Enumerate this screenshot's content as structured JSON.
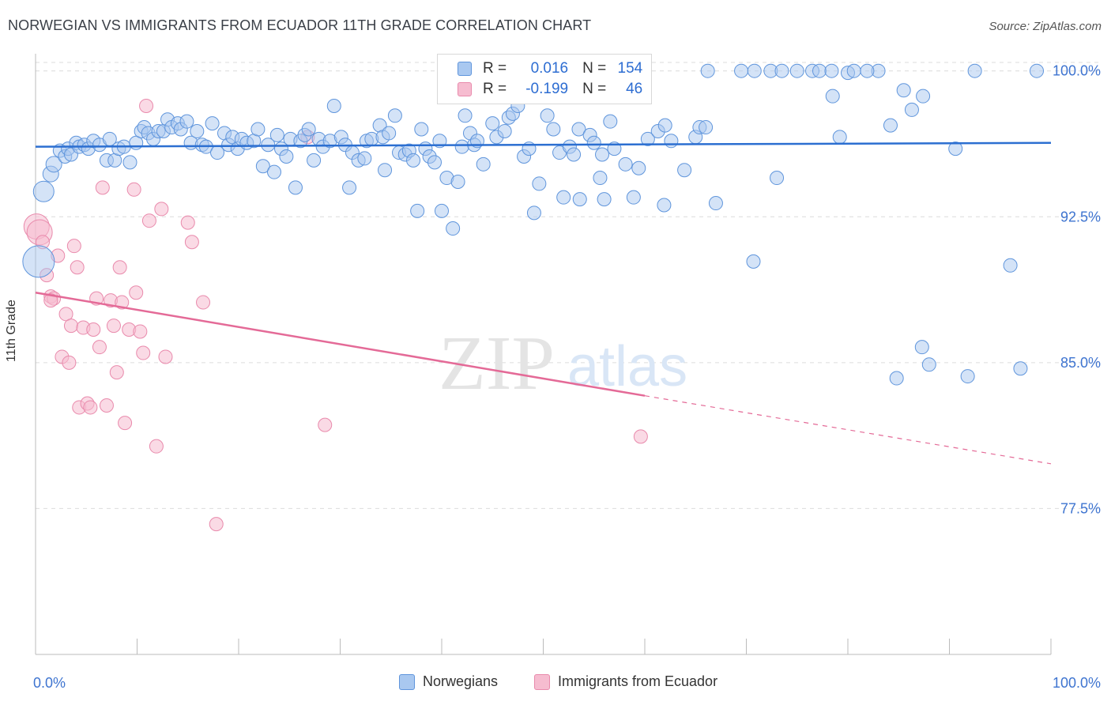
{
  "title": "NORWEGIAN VS IMMIGRANTS FROM ECUADOR 11TH GRADE CORRELATION CHART",
  "source": "Source: ZipAtlas.com",
  "watermark": {
    "zip": "ZIP",
    "atlas": "atlas"
  },
  "legend": {
    "r_label": "R =",
    "n_label": "N =",
    "series": [
      {
        "r": "0.016",
        "n": "154"
      },
      {
        "r": "-0.199",
        "n": "46"
      }
    ]
  },
  "colors": {
    "blue_fill": "#a9c8f0",
    "blue_stroke": "#5f95dc",
    "blue_line": "#2c6fd1",
    "pink_fill": "#f6bcd0",
    "pink_stroke": "#e98aac",
    "pink_line": "#e46a97",
    "tick_label": "#3e74d0",
    "grid": "#dcdcdc"
  },
  "chart_data": {
    "type": "scatter",
    "title": "NORWEGIAN VS IMMIGRANTS FROM ECUADOR 11TH GRADE CORRELATION CHART",
    "xlabel": "",
    "ylabel": "11th Grade",
    "xlim": [
      0,
      100
    ],
    "ylim": [
      70,
      100.8
    ],
    "x_tick_labels": [
      "0.0%",
      "100.0%"
    ],
    "y_ticks": [
      77.5,
      85.0,
      92.5,
      100.0
    ],
    "y_tick_labels": [
      "77.5%",
      "85.0%",
      "92.5%",
      "100.0%"
    ],
    "grid": "horizontal dashed",
    "legend_position": "top-center",
    "series": [
      {
        "name": "Norwegians",
        "color": "#a9c8f0",
        "trend": {
          "x": [
            0,
            100
          ],
          "y": [
            96.1,
            96.3
          ],
          "dashed_after": null
        },
        "points": [
          [
            0.3,
            90.2
          ],
          [
            0.8,
            93.8
          ],
          [
            1.5,
            94.7
          ],
          [
            1.8,
            95.2
          ],
          [
            2.4,
            95.9
          ],
          [
            2.9,
            95.6
          ],
          [
            3.2,
            96.0
          ],
          [
            3.5,
            95.7
          ],
          [
            4.0,
            96.3
          ],
          [
            4.3,
            96.1
          ],
          [
            4.8,
            96.2
          ],
          [
            5.2,
            96.0
          ],
          [
            5.7,
            96.4
          ],
          [
            6.3,
            96.2
          ],
          [
            7.0,
            95.4
          ],
          [
            7.3,
            96.5
          ],
          [
            7.8,
            95.4
          ],
          [
            8.2,
            96.0
          ],
          [
            8.7,
            96.1
          ],
          [
            9.3,
            95.3
          ],
          [
            9.9,
            96.3
          ],
          [
            10.4,
            96.9
          ],
          [
            10.7,
            97.1
          ],
          [
            11.1,
            96.8
          ],
          [
            11.6,
            96.5
          ],
          [
            12.1,
            96.9
          ],
          [
            12.6,
            96.9
          ],
          [
            13.0,
            97.5
          ],
          [
            13.4,
            97.1
          ],
          [
            14.0,
            97.3
          ],
          [
            14.3,
            97.0
          ],
          [
            14.9,
            97.4
          ],
          [
            15.3,
            96.3
          ],
          [
            15.9,
            96.9
          ],
          [
            16.4,
            96.2
          ],
          [
            16.8,
            96.1
          ],
          [
            17.4,
            97.3
          ],
          [
            17.9,
            95.8
          ],
          [
            18.6,
            96.8
          ],
          [
            19.0,
            96.2
          ],
          [
            19.4,
            96.6
          ],
          [
            19.9,
            96.0
          ],
          [
            20.3,
            96.5
          ],
          [
            20.8,
            96.3
          ],
          [
            21.5,
            96.4
          ],
          [
            21.9,
            97.0
          ],
          [
            22.4,
            95.1
          ],
          [
            22.9,
            96.2
          ],
          [
            23.5,
            94.8
          ],
          [
            23.8,
            96.7
          ],
          [
            24.2,
            96.0
          ],
          [
            24.7,
            95.6
          ],
          [
            25.1,
            96.5
          ],
          [
            25.6,
            94.0
          ],
          [
            26.1,
            96.4
          ],
          [
            26.5,
            96.7
          ],
          [
            26.9,
            97.0
          ],
          [
            27.4,
            95.4
          ],
          [
            27.9,
            96.5
          ],
          [
            28.3,
            96.1
          ],
          [
            29.0,
            96.4
          ],
          [
            29.4,
            98.2
          ],
          [
            30.1,
            96.6
          ],
          [
            30.5,
            96.2
          ],
          [
            30.9,
            94.0
          ],
          [
            31.2,
            95.8
          ],
          [
            31.8,
            95.4
          ],
          [
            32.4,
            95.5
          ],
          [
            32.6,
            96.4
          ],
          [
            33.1,
            96.5
          ],
          [
            33.9,
            97.2
          ],
          [
            34.2,
            96.6
          ],
          [
            34.4,
            94.9
          ],
          [
            34.8,
            96.8
          ],
          [
            35.4,
            97.7
          ],
          [
            35.8,
            95.8
          ],
          [
            36.4,
            95.7
          ],
          [
            36.8,
            95.9
          ],
          [
            37.2,
            95.4
          ],
          [
            37.6,
            92.8
          ],
          [
            38.0,
            97.0
          ],
          [
            38.4,
            96.0
          ],
          [
            38.8,
            95.6
          ],
          [
            39.3,
            95.3
          ],
          [
            39.8,
            96.4
          ],
          [
            40.0,
            92.8
          ],
          [
            40.5,
            94.5
          ],
          [
            41.1,
            91.9
          ],
          [
            41.6,
            94.3
          ],
          [
            42.0,
            96.1
          ],
          [
            42.3,
            97.7
          ],
          [
            42.8,
            96.8
          ],
          [
            43.2,
            96.2
          ],
          [
            43.5,
            96.4
          ],
          [
            44.1,
            95.2
          ],
          [
            45.0,
            97.3
          ],
          [
            45.4,
            96.6
          ],
          [
            46.2,
            96.9
          ],
          [
            46.6,
            97.6
          ],
          [
            47.0,
            97.8
          ],
          [
            47.5,
            98.2
          ],
          [
            48.1,
            95.6
          ],
          [
            48.6,
            96.0
          ],
          [
            49.1,
            92.7
          ],
          [
            49.6,
            94.2
          ],
          [
            50.4,
            97.7
          ],
          [
            51.0,
            97.0
          ],
          [
            51.6,
            95.8
          ],
          [
            52.0,
            93.5
          ],
          [
            52.6,
            96.1
          ],
          [
            53.0,
            95.7
          ],
          [
            53.5,
            97.0
          ],
          [
            54.6,
            96.7
          ],
          [
            55.0,
            96.3
          ],
          [
            55.6,
            94.5
          ],
          [
            56.0,
            93.4
          ],
          [
            56.6,
            97.4
          ],
          [
            57.0,
            96.0
          ],
          [
            58.1,
            95.2
          ],
          [
            58.9,
            93.5
          ],
          [
            59.4,
            95.0
          ],
          [
            60.3,
            96.5
          ],
          [
            61.3,
            96.9
          ],
          [
            62.0,
            97.2
          ],
          [
            62.6,
            96.4
          ],
          [
            63.9,
            94.9
          ],
          [
            65.0,
            96.6
          ],
          [
            65.4,
            97.1
          ],
          [
            66.0,
            97.1
          ],
          [
            67.0,
            93.2
          ],
          [
            76.5,
            100.0
          ],
          [
            78.5,
            98.7
          ],
          [
            79.2,
            96.6
          ],
          [
            80.0,
            99.9
          ],
          [
            83.0,
            100.0
          ],
          [
            84.2,
            97.2
          ],
          [
            85.5,
            99.0
          ],
          [
            84.8,
            84.2
          ],
          [
            87.3,
            85.8
          ],
          [
            88.0,
            84.9
          ],
          [
            90.6,
            96.0
          ],
          [
            92.5,
            100.0
          ],
          [
            96.0,
            90.0
          ],
          [
            97.0,
            84.7
          ],
          [
            98.6,
            100.0
          ],
          [
            86.3,
            98.0
          ],
          [
            53.6,
            93.4
          ],
          [
            55.8,
            95.7
          ],
          [
            66.2,
            100.0
          ],
          [
            69.5,
            100.0
          ],
          [
            70.8,
            100.0
          ],
          [
            72.4,
            100.0
          ],
          [
            73.5,
            100.0
          ],
          [
            75.0,
            100.0
          ],
          [
            77.2,
            100.0
          ],
          [
            78.4,
            100.0
          ],
          [
            80.6,
            100.0
          ],
          [
            81.9,
            100.0
          ],
          [
            60.0,
            100.0
          ],
          [
            87.4,
            98.7
          ],
          [
            91.8,
            84.3
          ],
          [
            61.9,
            93.1
          ],
          [
            70.7,
            90.2
          ],
          [
            73.0,
            94.5
          ]
        ]
      },
      {
        "name": "Immigrants from Ecuador",
        "color": "#f6bcd0",
        "trend": {
          "x": [
            0,
            60,
            100
          ],
          "y": [
            88.6,
            83.3,
            79.8
          ],
          "dashed_after": 60
        },
        "points": [
          [
            0.1,
            92.0
          ],
          [
            0.4,
            91.7
          ],
          [
            0.7,
            91.2
          ],
          [
            1.1,
            89.5
          ],
          [
            1.5,
            88.4
          ],
          [
            1.8,
            88.3
          ],
          [
            2.2,
            90.5
          ],
          [
            2.6,
            85.3
          ],
          [
            3.0,
            87.5
          ],
          [
            3.3,
            85.0
          ],
          [
            3.5,
            86.9
          ],
          [
            3.8,
            91.0
          ],
          [
            4.1,
            89.9
          ],
          [
            4.3,
            82.7
          ],
          [
            4.7,
            86.8
          ],
          [
            5.1,
            82.9
          ],
          [
            5.4,
            82.7
          ],
          [
            5.7,
            86.7
          ],
          [
            6.0,
            88.3
          ],
          [
            6.3,
            85.8
          ],
          [
            6.6,
            94.0
          ],
          [
            7.0,
            82.8
          ],
          [
            7.4,
            88.2
          ],
          [
            7.7,
            86.9
          ],
          [
            8.0,
            84.5
          ],
          [
            8.3,
            89.9
          ],
          [
            8.5,
            88.1
          ],
          [
            8.8,
            81.9
          ],
          [
            9.2,
            86.7
          ],
          [
            9.7,
            93.9
          ],
          [
            9.9,
            88.6
          ],
          [
            10.3,
            86.6
          ],
          [
            10.6,
            85.5
          ],
          [
            10.9,
            98.2
          ],
          [
            11.2,
            92.3
          ],
          [
            11.9,
            80.7
          ],
          [
            12.4,
            92.9
          ],
          [
            12.8,
            85.3
          ],
          [
            15.0,
            92.2
          ],
          [
            15.4,
            91.2
          ],
          [
            16.5,
            88.1
          ],
          [
            17.8,
            76.7
          ],
          [
            26.8,
            96.6
          ],
          [
            28.5,
            81.8
          ],
          [
            59.6,
            81.2
          ],
          [
            1.5,
            88.2
          ]
        ]
      }
    ]
  },
  "bottom_legend": [
    "Norwegians",
    "Immigrants from Ecuador"
  ]
}
